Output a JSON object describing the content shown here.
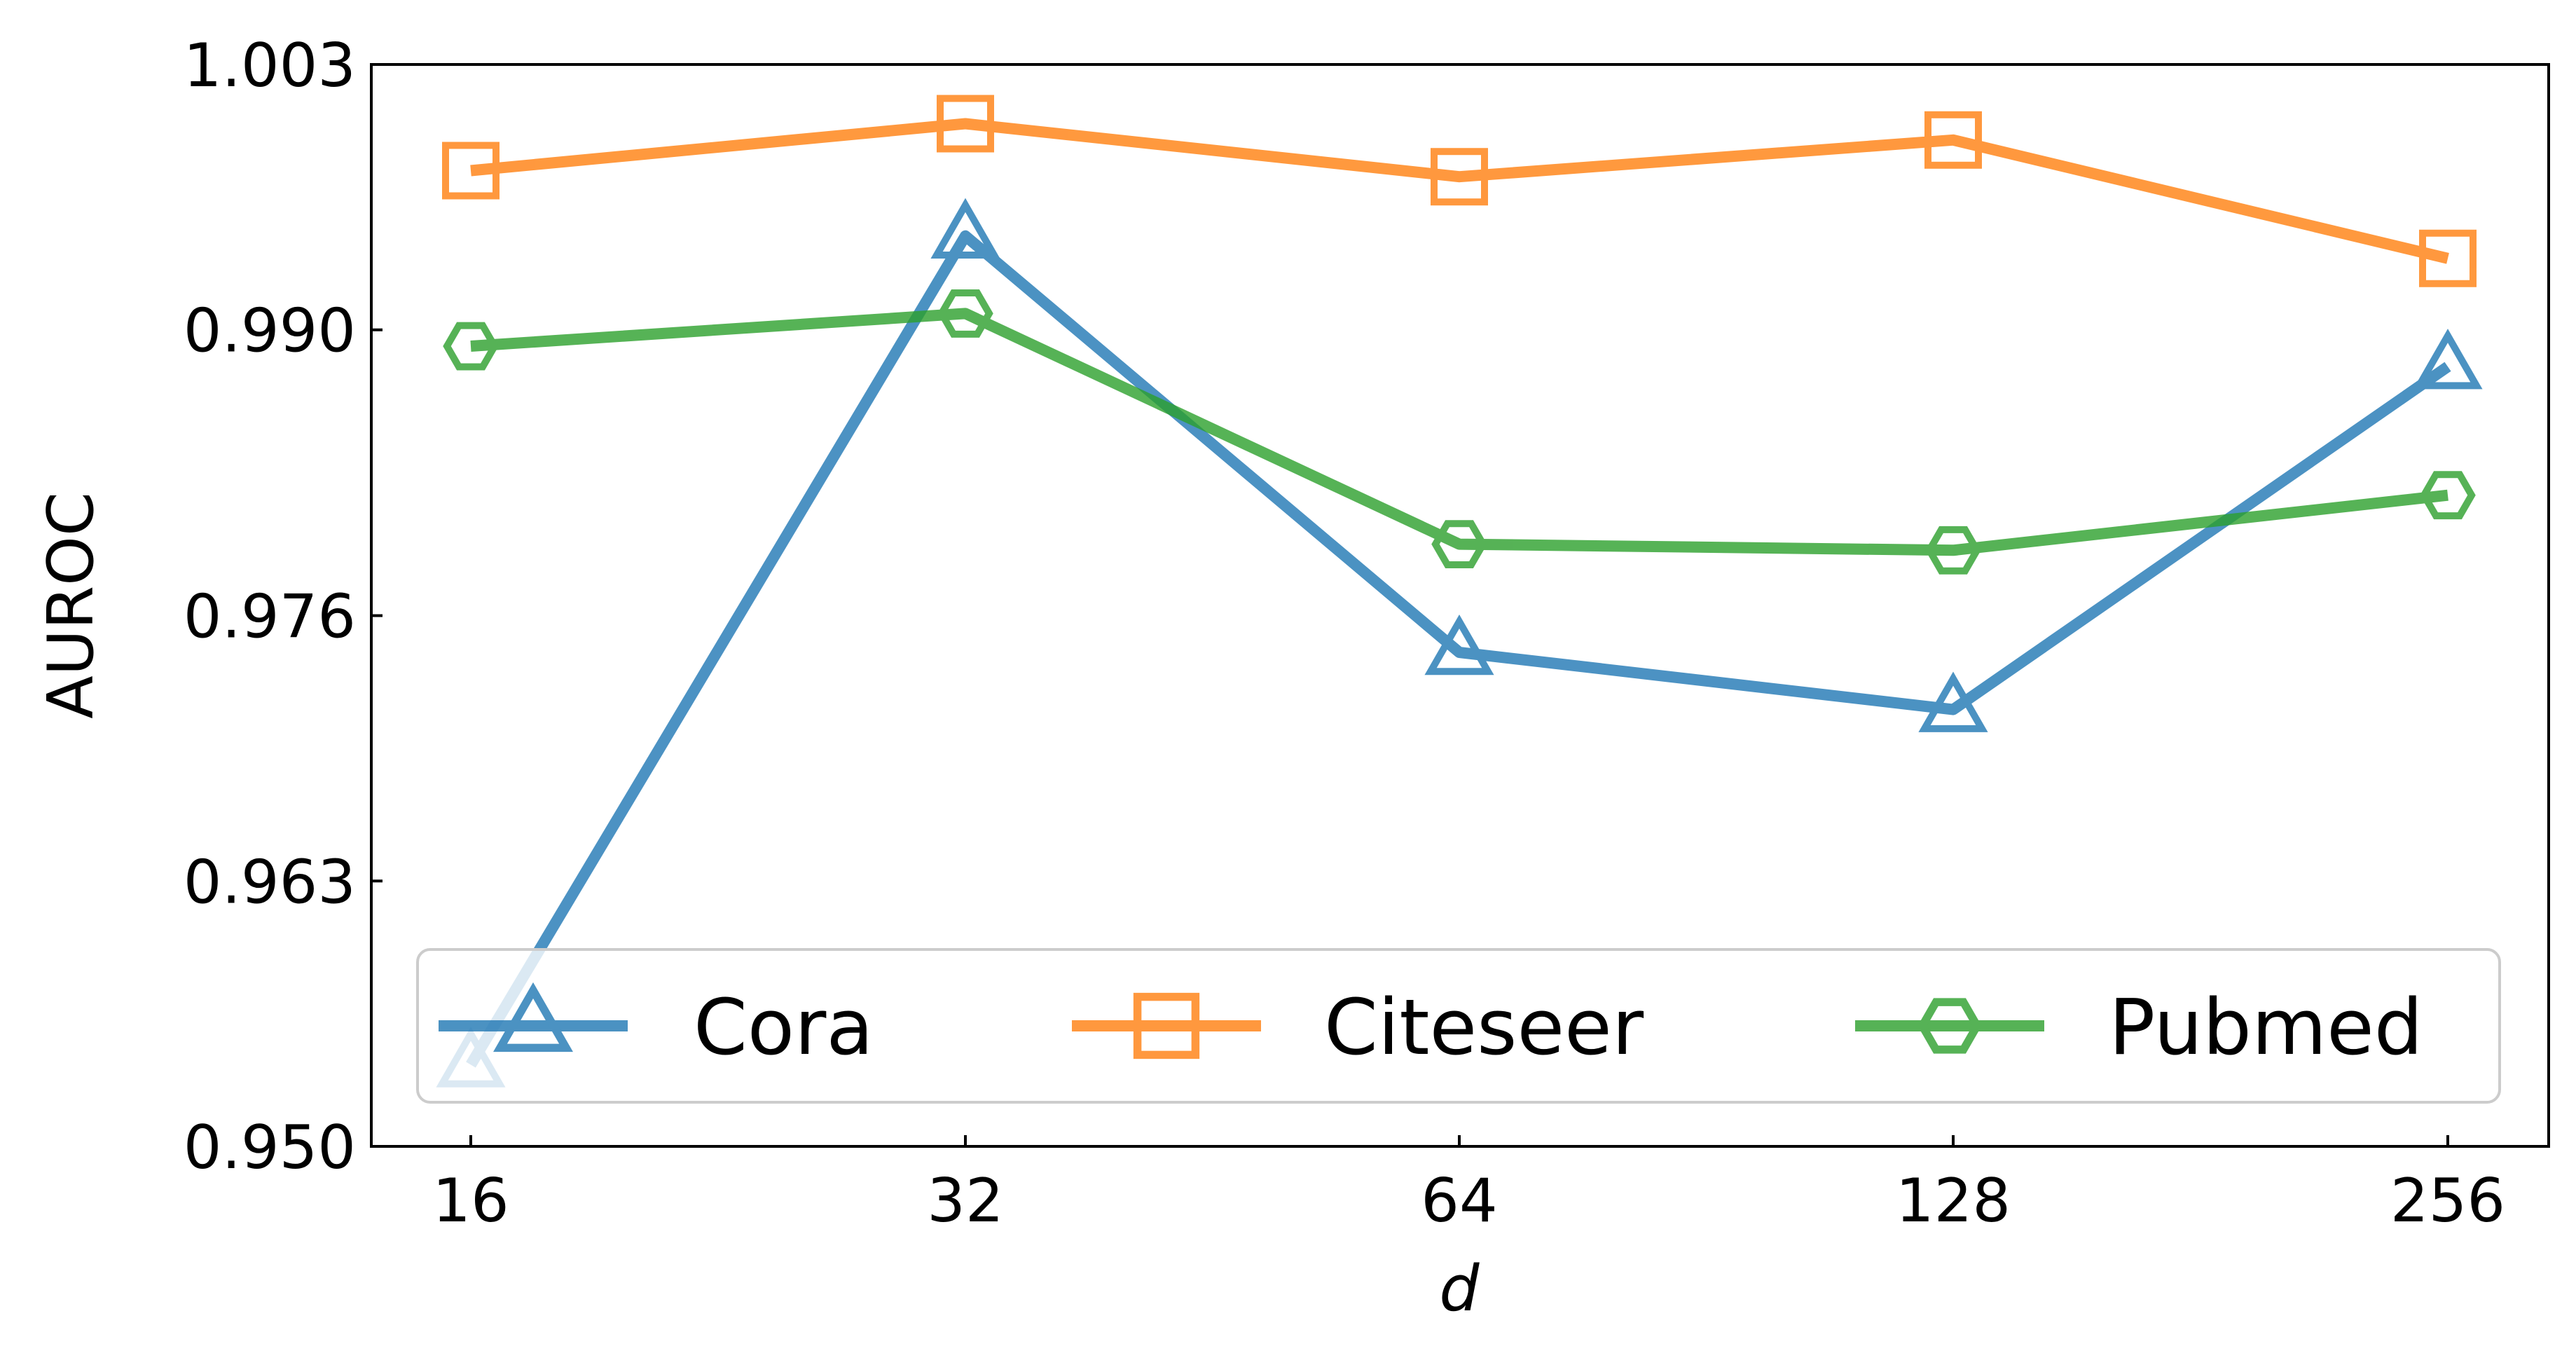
{
  "chart_data": {
    "type": "line",
    "title": "",
    "xlabel": "d",
    "ylabel": "AUROC",
    "categories": [
      "16",
      "32",
      "64",
      "128",
      "256"
    ],
    "ylim": [
      0.95,
      1.003
    ],
    "yticks": [
      0.95,
      0.963,
      0.976,
      0.99,
      1.003
    ],
    "ytick_labels": [
      "0.950",
      "0.963",
      "0.976",
      "0.990",
      "1.003"
    ],
    "grid": false,
    "legend_position": "lower-center",
    "series": [
      {
        "name": "Cora",
        "color": "#1f77b4",
        "marker": "triangle",
        "values": [
          0.954,
          0.9946,
          0.9742,
          0.9714,
          0.9882
        ]
      },
      {
        "name": "Citeseer",
        "color": "#ff7f0e",
        "marker": "square",
        "values": [
          0.9978,
          1.0001,
          0.9975,
          0.9993,
          0.9935
        ]
      },
      {
        "name": "Pubmed",
        "color": "#2ca02c",
        "marker": "hexagon",
        "values": [
          0.9892,
          0.9908,
          0.9795,
          0.9792,
          0.9819
        ]
      }
    ]
  }
}
